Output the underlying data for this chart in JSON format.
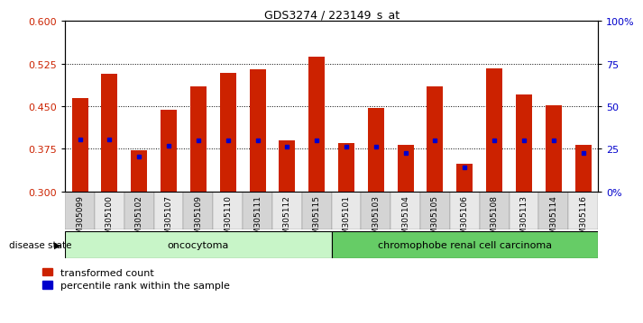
{
  "title": "GDS3274 / 223149_s_at",
  "samples": [
    "GSM305099",
    "GSM305100",
    "GSM305102",
    "GSM305107",
    "GSM305109",
    "GSM305110",
    "GSM305111",
    "GSM305112",
    "GSM305115",
    "GSM305101",
    "GSM305103",
    "GSM305104",
    "GSM305105",
    "GSM305106",
    "GSM305108",
    "GSM305113",
    "GSM305114",
    "GSM305116"
  ],
  "bar_heights": [
    0.465,
    0.507,
    0.372,
    0.443,
    0.485,
    0.508,
    0.515,
    0.39,
    0.537,
    0.385,
    0.447,
    0.382,
    0.485,
    0.348,
    0.516,
    0.471,
    0.452,
    0.382
  ],
  "blue_dots": [
    0.392,
    0.392,
    0.362,
    0.38,
    0.39,
    0.39,
    0.39,
    0.378,
    0.39,
    0.378,
    0.378,
    0.368,
    0.39,
    0.342,
    0.39,
    0.39,
    0.39,
    0.368
  ],
  "groups": [
    {
      "label": "oncocytoma",
      "start": 0,
      "end": 9,
      "color": "#c8f5c8"
    },
    {
      "label": "chromophobe renal cell carcinoma",
      "start": 9,
      "end": 18,
      "color": "#66cc66"
    }
  ],
  "ylim": [
    0.3,
    0.6
  ],
  "yticks_left": [
    0.3,
    0.375,
    0.45,
    0.525,
    0.6
  ],
  "yticks_right": [
    0,
    25,
    50,
    75,
    100
  ],
  "ytick_labels_right": [
    "0%",
    "25",
    "50",
    "75",
    "100%"
  ],
  "bar_color": "#cc2200",
  "dot_color": "#0000cc",
  "background_color": "#ffffff",
  "legend_tc": "transformed count",
  "legend_pr": "percentile rank within the sample",
  "disease_state_label": "disease state"
}
